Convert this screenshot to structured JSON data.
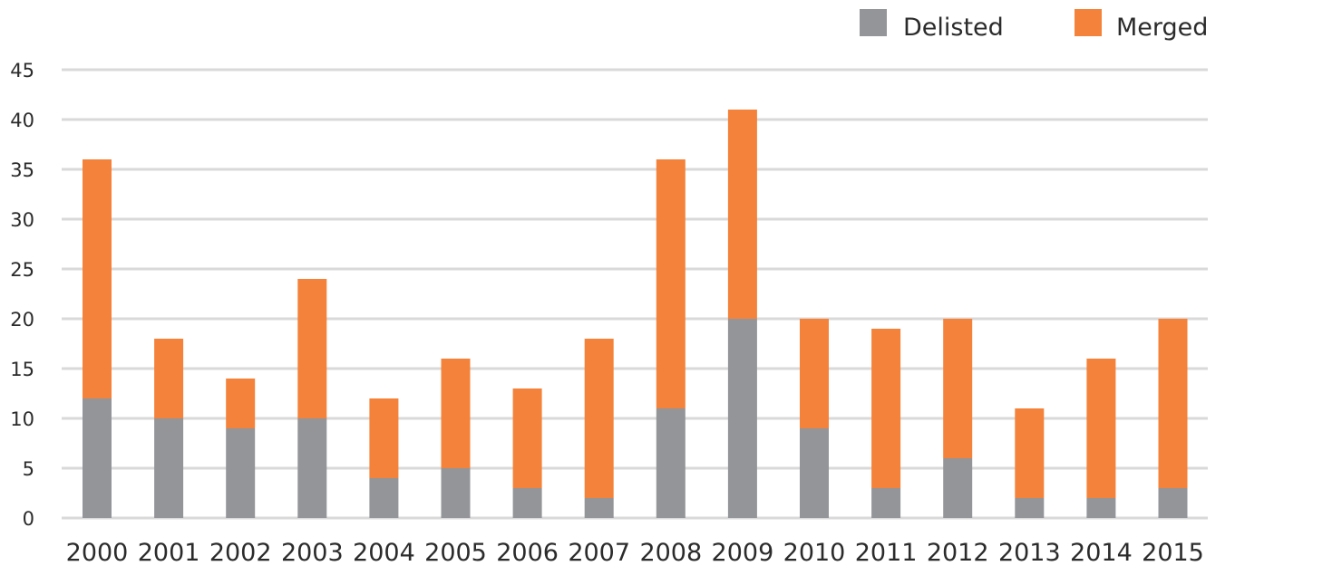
{
  "chart_data": {
    "type": "bar",
    "stacked": true,
    "title": "",
    "xlabel": "",
    "ylabel": "",
    "categories": [
      "2000",
      "2001",
      "2002",
      "2003",
      "2004",
      "2005",
      "2006",
      "2007",
      "2008",
      "2009",
      "2010",
      "2011",
      "2012",
      "2013",
      "2014",
      "2015"
    ],
    "series": [
      {
        "name": "Delisted",
        "color": "#939598",
        "values": [
          12,
          10,
          9,
          10,
          4,
          5,
          3,
          2,
          11,
          20,
          9,
          3,
          6,
          2,
          2,
          3
        ]
      },
      {
        "name": "Merged",
        "color": "#f4823a",
        "values": [
          24,
          8,
          5,
          14,
          8,
          11,
          10,
          16,
          25,
          21,
          11,
          16,
          14,
          9,
          14,
          17
        ]
      }
    ],
    "ylim": [
      0,
      45
    ],
    "yticks": [
      0,
      5,
      10,
      15,
      20,
      25,
      30,
      35,
      40,
      45
    ],
    "grid": true,
    "legend_position": "top-right",
    "gridline_color": "#d9d9d9"
  }
}
